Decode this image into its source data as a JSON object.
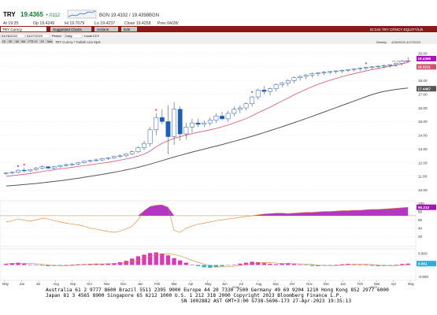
{
  "window": {
    "ticker": "TRY",
    "last_price": "19.4365",
    "change": "+.0112",
    "bid_ask": "BGN 19.4332 / 19.4398BGN",
    "at_time": "At 19:35",
    "open": "Op 19.4249",
    "high": "Hi 19.7079",
    "low": "Lo 19.4237",
    "close": "Close 19.4258",
    "date": "Prev 04/28/",
    "ticker_badge": "CCY",
    "field_1": "3M",
    "field_2": "1Y",
    "field_3": "5Y",
    "top_right": "ID:244  TRY CRNCY  EQUITY/Lib"
  },
  "toolbar": {
    "field_value": "TRY Curncy",
    "menu_items": [
      "Suggested Charts",
      "Actions",
      "Edit"
    ],
    "right_label": "TRY CRNCY"
  },
  "controls": {
    "range_start": "04/26/2022",
    "range_end": "04/27/2023",
    "period_label": "Period",
    "period_value": "Daily",
    "local_label": "Local CCY",
    "tabs": [
      "1D",
      "3D",
      "1M",
      "6M",
      "YTD",
      "1Y",
      "5Y",
      "Max"
    ],
    "subtitle": "TRY Curncy / Turkish Lira Spot",
    "date_range_right": "4/26/2022-4/27/2023",
    "weekly_label": "Weekly"
  },
  "price_axis": {
    "ticks": [
      "20.00",
      "19.00",
      "18.00",
      "17.00",
      "16.00",
      "15.00",
      "14.00",
      "13.00",
      "12.00",
      "11.00",
      "10.00"
    ],
    "last_label": "19.4365",
    "ma1_label": "19.3211",
    "ma2_label": "17.4467",
    "hi_label": "Hi 19.7079"
  },
  "rsi_axis": {
    "ticks": [
      "100",
      "80",
      "60",
      "40",
      "20"
    ],
    "last_label": "90.213"
  },
  "hist_axis": {
    "ticks": [
      "0.500",
      "0.000",
      "-0.500"
    ],
    "last_label": "0.061"
  },
  "x_axis": {
    "labels": [
      "May",
      "Jun",
      "Jul",
      "Aug",
      "Sep",
      "Oct",
      "Nov",
      "Dec",
      "Jan",
      "Feb",
      "Mar",
      "Apr",
      "May",
      "Jun",
      "Jul",
      "Aug",
      "Sep",
      "Oct",
      "Nov",
      "Dec",
      "Jan",
      "Feb",
      "Mar",
      "Apr",
      "May"
    ],
    "year_1": "2022",
    "year_2": "2023"
  },
  "footer": {
    "line1": "Australia 61 2 9777 8600 Brazil 5511 2395 9000 Europe 44 20 7330 7500 Germany 49 69 9204 1210 Hong Kong 852 2977 6000",
    "line2": "Japan 81 3 4565 8900       Singapore 65 6212 1000       U.S. 1 212 318 2000          Copyright 2023 Bloomberg Finance L.P.",
    "line3": "SN 1002882 AST  GMT+3:00 G738-5696-173 27-Apr-2023 19:35:13"
  },
  "chart_data": {
    "type": "candlestick",
    "price_range": [
      9.5,
      20.2
    ],
    "candles": [
      [
        11.2,
        11.3,
        11.1,
        11.25
      ],
      [
        11.25,
        11.35,
        11.15,
        11.3
      ],
      [
        11.3,
        11.5,
        11.2,
        11.45
      ],
      [
        11.45,
        11.6,
        11.3,
        11.4
      ],
      [
        11.4,
        11.55,
        11.3,
        11.5
      ],
      [
        11.5,
        11.7,
        11.4,
        11.6
      ],
      [
        11.6,
        11.8,
        11.5,
        11.7
      ],
      [
        11.7,
        11.75,
        11.55,
        11.6
      ],
      [
        11.6,
        11.75,
        11.5,
        11.7
      ],
      [
        11.7,
        11.85,
        11.6,
        11.8
      ],
      [
        11.8,
        11.95,
        11.7,
        11.85
      ],
      [
        11.85,
        12.0,
        11.75,
        11.9
      ],
      [
        11.9,
        12.05,
        11.8,
        12.0
      ],
      [
        12.0,
        12.15,
        11.9,
        12.1
      ],
      [
        12.1,
        12.2,
        12.0,
        12.15
      ],
      [
        12.15,
        12.3,
        12.05,
        12.2
      ],
      [
        12.2,
        12.35,
        12.1,
        12.3
      ],
      [
        12.3,
        12.4,
        12.2,
        12.35
      ],
      [
        12.35,
        12.5,
        12.25,
        12.45
      ],
      [
        12.45,
        12.6,
        12.35,
        12.5
      ],
      [
        12.5,
        12.7,
        12.4,
        12.65
      ],
      [
        12.65,
        12.9,
        12.55,
        12.8
      ],
      [
        12.8,
        13.2,
        12.7,
        13.1
      ],
      [
        13.1,
        13.6,
        12.9,
        13.4
      ],
      [
        13.4,
        14.6,
        13.2,
        14.4
      ],
      [
        14.4,
        15.6,
        14.0,
        15.3
      ],
      [
        15.3,
        15.9,
        14.8,
        15.0
      ],
      [
        15.0,
        16.2,
        12.6,
        13.9
      ],
      [
        13.9,
        16.4,
        13.3,
        15.9
      ],
      [
        15.9,
        16.1,
        13.6,
        14.1
      ],
      [
        14.1,
        14.9,
        13.7,
        14.6
      ],
      [
        14.6,
        15.2,
        14.2,
        14.9
      ],
      [
        14.9,
        15.2,
        14.6,
        14.8
      ],
      [
        14.8,
        15.1,
        14.6,
        14.9
      ],
      [
        14.9,
        15.3,
        14.7,
        15.1
      ],
      [
        15.1,
        15.6,
        14.9,
        15.4
      ],
      [
        15.4,
        15.7,
        15.1,
        15.2
      ],
      [
        15.2,
        15.8,
        15.0,
        15.6
      ],
      [
        15.6,
        16.1,
        15.4,
        15.9
      ],
      [
        15.9,
        16.2,
        15.6,
        16.0
      ],
      [
        16.0,
        16.4,
        15.8,
        16.3
      ],
      [
        16.3,
        16.9,
        16.1,
        16.8
      ],
      [
        16.8,
        17.4,
        16.6,
        17.3
      ],
      [
        17.3,
        17.6,
        17.0,
        17.2
      ],
      [
        17.2,
        17.5,
        16.9,
        17.4
      ],
      [
        17.4,
        17.8,
        17.2,
        17.7
      ],
      [
        17.7,
        17.9,
        17.5,
        17.8
      ],
      [
        17.8,
        18.1,
        17.6,
        18.0
      ],
      [
        18.0,
        18.3,
        17.8,
        18.2
      ],
      [
        18.2,
        18.4,
        18.0,
        18.3
      ],
      [
        18.3,
        18.5,
        18.1,
        18.4
      ],
      [
        18.4,
        18.6,
        18.2,
        18.5
      ],
      [
        18.5,
        18.6,
        18.3,
        18.55
      ],
      [
        18.55,
        18.7,
        18.4,
        18.6
      ],
      [
        18.6,
        18.7,
        18.45,
        18.65
      ],
      [
        18.65,
        18.75,
        18.5,
        18.7
      ],
      [
        18.7,
        18.8,
        18.55,
        18.75
      ],
      [
        18.75,
        18.85,
        18.6,
        18.8
      ],
      [
        18.8,
        18.9,
        18.65,
        18.85
      ],
      [
        18.85,
        18.95,
        18.7,
        18.9
      ],
      [
        18.9,
        19.0,
        18.75,
        18.95
      ],
      [
        18.95,
        19.05,
        18.8,
        19.0
      ],
      [
        19.0,
        19.1,
        18.85,
        19.05
      ],
      [
        19.05,
        19.15,
        18.9,
        19.1
      ],
      [
        19.1,
        19.2,
        18.95,
        19.15
      ],
      [
        19.15,
        19.3,
        19.0,
        19.25
      ],
      [
        19.25,
        19.45,
        19.1,
        19.4
      ],
      [
        19.4,
        19.71,
        19.3,
        19.44
      ]
    ],
    "ma_fast": [
      11.0,
      11.05,
      11.1,
      11.15,
      11.2,
      11.28,
      11.35,
      11.42,
      11.48,
      11.55,
      11.6,
      11.66,
      11.72,
      11.78,
      11.84,
      11.9,
      11.96,
      12.02,
      12.1,
      12.18,
      12.27,
      12.36,
      12.48,
      12.62,
      12.85,
      13.15,
      13.42,
      13.6,
      13.78,
      13.9,
      14.02,
      14.12,
      14.22,
      14.3,
      14.4,
      14.5,
      14.62,
      14.75,
      14.9,
      15.05,
      15.22,
      15.42,
      15.65,
      15.85,
      16.05,
      16.28,
      16.5,
      16.72,
      16.95,
      17.15,
      17.35,
      17.55,
      17.72,
      17.88,
      18.02,
      18.15,
      18.28,
      18.4,
      18.5,
      18.6,
      18.7,
      18.8,
      18.88,
      18.96,
      19.04,
      19.12,
      19.22,
      19.32
    ],
    "ma_slow": [
      10.3,
      10.33,
      10.36,
      10.4,
      10.44,
      10.48,
      10.53,
      10.58,
      10.63,
      10.68,
      10.74,
      10.8,
      10.86,
      10.93,
      11.0,
      11.07,
      11.14,
      11.22,
      11.3,
      11.38,
      11.47,
      11.56,
      11.66,
      11.77,
      11.89,
      12.02,
      12.15,
      12.28,
      12.41,
      12.53,
      12.65,
      12.77,
      12.88,
      12.99,
      13.1,
      13.21,
      13.32,
      13.44,
      13.56,
      13.68,
      13.8,
      13.93,
      14.06,
      14.2,
      14.34,
      14.48,
      14.62,
      14.77,
      14.92,
      15.07,
      15.22,
      15.38,
      15.54,
      15.7,
      15.86,
      16.02,
      16.18,
      16.34,
      16.5,
      16.66,
      16.82,
      16.97,
      17.1,
      17.2,
      17.28,
      17.35,
      17.4,
      17.45
    ],
    "rsi": [
      55,
      58,
      62,
      59,
      57,
      60,
      64,
      62,
      58,
      55,
      52,
      50,
      48,
      45,
      40,
      38,
      35,
      32,
      30,
      33,
      38,
      45,
      60,
      82,
      92,
      95,
      96,
      90,
      35,
      30,
      40,
      45,
      50,
      52,
      55,
      58,
      60,
      62,
      64,
      66,
      68,
      70,
      72,
      74,
      75,
      76,
      76,
      75,
      76,
      77,
      78,
      78,
      79,
      80,
      80,
      81,
      82,
      82,
      83,
      83,
      84,
      85,
      85,
      86,
      87,
      88,
      89,
      90.2
    ],
    "hist": [
      0.05,
      0.08,
      0.1,
      0.06,
      0.02,
      0.0,
      -0.03,
      -0.05,
      -0.04,
      -0.02,
      0.0,
      0.02,
      0.03,
      0.04,
      0.05,
      0.06,
      0.05,
      0.06,
      0.08,
      0.12,
      0.18,
      0.28,
      0.38,
      0.45,
      0.52,
      0.55,
      0.5,
      0.42,
      0.3,
      0.2,
      0.1,
      0.02,
      -0.05,
      -0.1,
      -0.12,
      -0.1,
      -0.06,
      -0.02,
      0.02,
      0.06,
      0.1,
      0.14,
      0.12,
      0.08,
      0.05,
      0.04,
      0.06,
      0.08,
      0.05,
      0.02,
      -0.02,
      -0.04,
      -0.05,
      -0.03,
      -0.01,
      0.01,
      0.03,
      0.05,
      0.04,
      0.02,
      0.0,
      -0.03,
      -0.05,
      -0.04,
      -0.02,
      0.01,
      0.04,
      0.06
    ],
    "signal_markers": [
      2,
      3,
      25,
      41,
      60
    ]
  }
}
